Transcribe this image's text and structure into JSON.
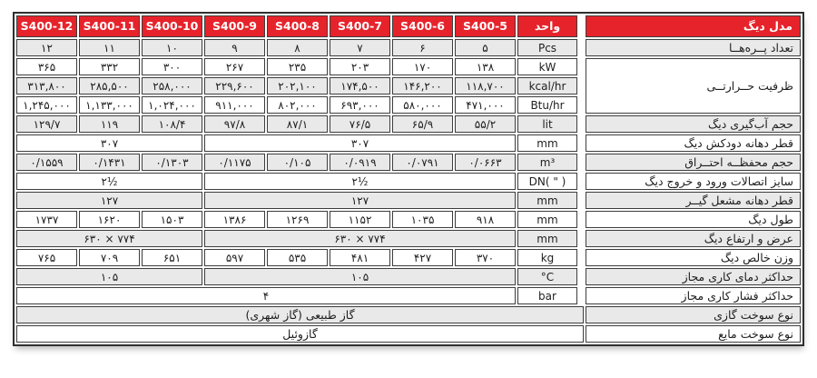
{
  "title": "S400 boiler specification table (Persian)",
  "colors": {
    "header_red": "#e6232b",
    "row_gray": "#e9e9e9",
    "row_white": "#ffffff",
    "cell_border": "#3d3d3d",
    "outer_border": "#2f2f2f",
    "text": "#1e1e1e",
    "header_text": "#ffffff"
  },
  "header": {
    "models": [
      "S400-12",
      "S400-11",
      "S400-10",
      "S400-9",
      "S400-8",
      "S400-7",
      "S400-6",
      "S400-5"
    ],
    "unit_label": "واحد",
    "model_label": "مدل دیگ"
  },
  "rows": [
    {
      "name": "sections",
      "label": "تعداد پــره‌هــا",
      "unit": "Pcs",
      "type": "cells",
      "values": [
        "۱۲",
        "۱۱",
        "۱۰",
        "۹",
        "۸",
        "۷",
        "۶",
        "۵"
      ]
    },
    {
      "name": "capacity-kw",
      "label": "ظرفیت حــرارتــی",
      "label_rowspan": 3,
      "unit": "kW",
      "type": "cells",
      "values": [
        "۳۶۵",
        "۳۳۲",
        "۳۰۰",
        "۲۶۷",
        "۲۳۵",
        "۲۰۳",
        "۱۷۰",
        "۱۳۸"
      ]
    },
    {
      "name": "capacity-kcal",
      "unit": "kcal/hr",
      "type": "cells",
      "values": [
        "۳۱۳,۸۰۰",
        "۲۸۵,۵۰۰",
        "۲۵۸,۰۰۰",
        "۲۲۹,۶۰۰",
        "۲۰۲,۱۰۰",
        "۱۷۴,۵۰۰",
        "۱۴۶,۲۰۰",
        "۱۱۸,۷۰۰"
      ]
    },
    {
      "name": "capacity-btu",
      "unit": "Btu/hr",
      "type": "cells",
      "values": [
        "۱,۲۴۵,۰۰۰",
        "۱,۱۳۳,۰۰۰",
        "۱,۰۲۴,۰۰۰",
        "۹۱۱,۰۰۰",
        "۸۰۲,۰۰۰",
        "۶۹۳,۰۰۰",
        "۵۸۰,۰۰۰",
        "۴۷۱,۰۰۰"
      ]
    },
    {
      "name": "water-volume",
      "label": "حجم آب‌گیری دیگ",
      "unit": "lit",
      "type": "cells",
      "values": [
        "۱۲۹/۷",
        "۱۱۹",
        "۱۰۸/۴",
        "۹۷/۸",
        "۸۷/۱",
        "۷۶/۵",
        "۶۵/۹",
        "۵۵/۲"
      ]
    },
    {
      "name": "chimney-diameter",
      "label": "قطر دهانه دودکش دیگ",
      "unit": "mm",
      "type": "merged2",
      "values": [
        "۳۰۷",
        "۳۰۷"
      ]
    },
    {
      "name": "combustion-volume",
      "label": "حجم محفظــه احتــراق",
      "unit": "m³",
      "type": "cells",
      "values": [
        "۰/۱۵۵۹",
        "۰/۱۴۳۱",
        "۰/۱۳۰۳",
        "۰/۱۱۷۵",
        "۰/۱۰۵",
        "۰/۰۹۱۹",
        "۰/۰۷۹۱",
        "۰/۰۶۶۳"
      ]
    },
    {
      "name": "connection-size",
      "label": "سایز اتصالات ورود و خروج دیگ",
      "unit": "DN( \" )",
      "type": "merged2",
      "values": [
        "۲½",
        "۲½"
      ]
    },
    {
      "name": "burner-opening",
      "label": "قطر دهانه مشعل گیــر",
      "unit": "mm",
      "type": "merged2",
      "values": [
        "۱۲۷",
        "۱۲۷"
      ]
    },
    {
      "name": "boiler-length",
      "label": "طول دیگ",
      "unit": "mm",
      "type": "cells",
      "values": [
        "۱۷۳۷",
        "۱۶۲۰",
        "۱۵۰۳",
        "۱۳۸۶",
        "۱۲۶۹",
        "۱۱۵۲",
        "۱۰۳۵",
        "۹۱۸"
      ]
    },
    {
      "name": "width-height",
      "label": "عرض و ارتفاع دیگ",
      "unit": "mm",
      "type": "merged2",
      "values": [
        "۶۳۰ × ۷۷۴",
        "۶۳۰ × ۷۷۴"
      ]
    },
    {
      "name": "net-weight",
      "label": "وزن خالص دیگ",
      "unit": "kg",
      "type": "cells",
      "values": [
        "۷۶۵",
        "۷۰۹",
        "۶۵۱",
        "۵۹۷",
        "۵۳۵",
        "۴۸۱",
        "۴۲۷",
        "۳۷۰"
      ]
    },
    {
      "name": "max-working-temp",
      "label": "حداکثر دمای کاری مجاز",
      "unit": "°C",
      "type": "merged2",
      "values": [
        "۱۰۵",
        "۱۰۵"
      ]
    },
    {
      "name": "max-working-pressure",
      "label": "حداکثر فشار کاری مجاز",
      "unit": "bar",
      "type": "full",
      "values": [
        "۴"
      ]
    },
    {
      "name": "gas-fuel-type",
      "label": "نوع سوخت گازی",
      "type": "fullplus",
      "values": [
        "گاز طبیعی (گاز شهری)"
      ]
    },
    {
      "name": "liquid-fuel-type",
      "label": "نوع سوخت مایع",
      "type": "fullplus",
      "values": [
        "گازوئیل"
      ]
    }
  ]
}
